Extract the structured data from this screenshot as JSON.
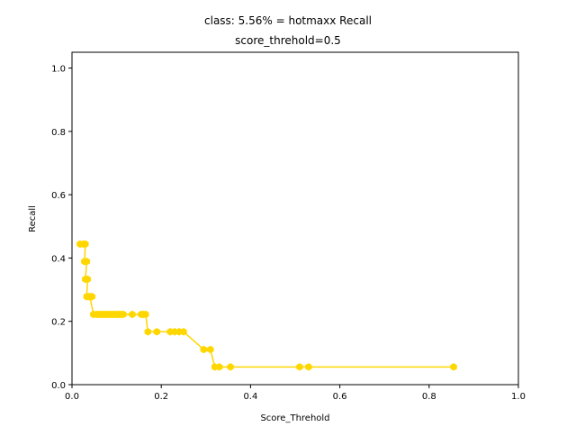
{
  "chart_data": {
    "type": "line",
    "title": "class: 5.56% = hotmaxx Recall",
    "subtitle": "score_threhold=0.5",
    "xlabel": "Score_Threhold",
    "ylabel": "Recall",
    "xlim": [
      0.0,
      1.0
    ],
    "ylim": [
      0.0,
      1.05
    ],
    "xticks": [
      "0.0",
      "0.2",
      "0.4",
      "0.6",
      "0.8",
      "1.0"
    ],
    "yticks": [
      "0.0",
      "0.2",
      "0.4",
      "0.6",
      "0.8",
      "1.0"
    ],
    "grid": false,
    "colors": {
      "series": "#ffd700"
    },
    "series": [
      {
        "marker": "hexagon",
        "x": [
          0.018,
          0.025,
          0.03,
          0.028,
          0.033,
          0.03,
          0.035,
          0.033,
          0.038,
          0.045,
          0.04,
          0.048,
          0.055,
          0.06,
          0.065,
          0.07,
          0.075,
          0.08,
          0.085,
          0.09,
          0.095,
          0.1,
          0.105,
          0.11,
          0.115,
          0.135,
          0.155,
          0.16,
          0.165,
          0.17,
          0.19,
          0.22,
          0.23,
          0.24,
          0.25,
          0.295,
          0.31,
          0.32,
          0.33,
          0.355,
          0.51,
          0.53,
          0.855
        ],
        "y": [
          0.444,
          0.444,
          0.444,
          0.389,
          0.389,
          0.333,
          0.333,
          0.278,
          0.278,
          0.278,
          0.278,
          0.222,
          0.222,
          0.222,
          0.222,
          0.222,
          0.222,
          0.222,
          0.222,
          0.222,
          0.222,
          0.222,
          0.222,
          0.222,
          0.222,
          0.222,
          0.222,
          0.222,
          0.222,
          0.167,
          0.167,
          0.167,
          0.167,
          0.167,
          0.167,
          0.111,
          0.111,
          0.056,
          0.056,
          0.056,
          0.056,
          0.056,
          0.056
        ]
      }
    ]
  }
}
